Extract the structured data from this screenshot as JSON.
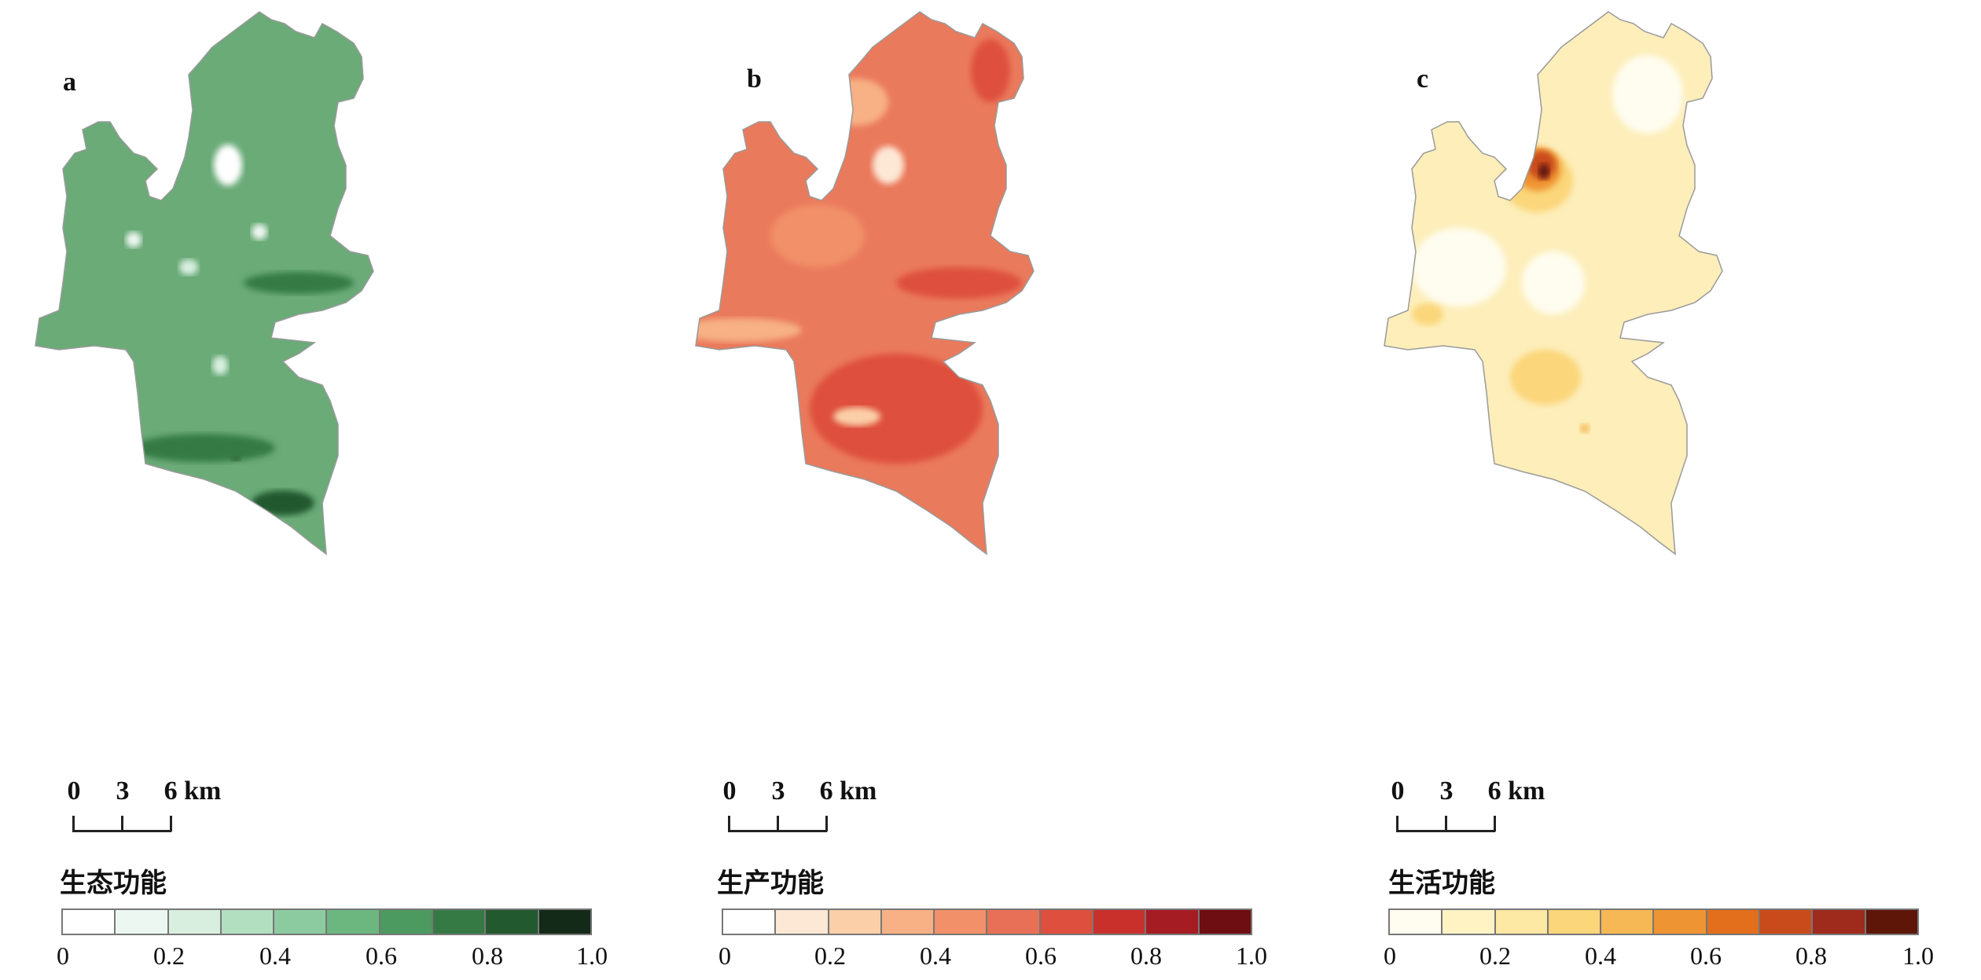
{
  "panels": [
    {
      "id": "a",
      "label": "a",
      "legend_title": "生态功能",
      "scale_ticks": [
        "0",
        "3",
        "6 km"
      ],
      "legend_ticks": [
        "0",
        "0.2",
        "0.4",
        "0.6",
        "0.8",
        "1.0"
      ],
      "colors": [
        "#ffffff",
        "#edf7f1",
        "#d8efdf",
        "#b2dfc0",
        "#8ccba0",
        "#6cb680",
        "#4c9a5f",
        "#357a44",
        "#22592e",
        "#142a19"
      ],
      "base_color": "#6aab78",
      "spots": [
        {
          "cx": 290,
          "cy": 210,
          "rx": 18,
          "ry": 26,
          "c": "#ffffff"
        },
        {
          "cx": 170,
          "cy": 305,
          "rx": 10,
          "ry": 10,
          "c": "#edf7f1"
        },
        {
          "cx": 240,
          "cy": 340,
          "rx": 12,
          "ry": 10,
          "c": "#d8efdf"
        },
        {
          "cx": 330,
          "cy": 295,
          "rx": 10,
          "ry": 10,
          "c": "#edf7f1"
        },
        {
          "cx": 280,
          "cy": 465,
          "rx": 10,
          "ry": 12,
          "c": "#d8efdf"
        },
        {
          "cx": 300,
          "cy": 580,
          "rx": 6,
          "ry": 6,
          "c": "#142a19"
        },
        {
          "cx": 380,
          "cy": 360,
          "rx": 70,
          "ry": 14,
          "c": "#357a44"
        },
        {
          "cx": 260,
          "cy": 570,
          "rx": 90,
          "ry": 18,
          "c": "#357a44"
        },
        {
          "cx": 360,
          "cy": 640,
          "rx": 40,
          "ry": 16,
          "c": "#22592e"
        }
      ]
    },
    {
      "id": "b",
      "label": "b",
      "legend_title": "生产功能",
      "scale_ticks": [
        "0",
        "3",
        "6 km"
      ],
      "legend_ticks": [
        "0",
        "0.2",
        "0.4",
        "0.6",
        "0.8",
        "1.0"
      ],
      "colors": [
        "#ffffff",
        "#fde8d6",
        "#fbcfa8",
        "#f7b184",
        "#f19069",
        "#e87056",
        "#de4f3e",
        "#c9302c",
        "#a51c22",
        "#6e0e12"
      ],
      "base_color": "#ea7a5c",
      "spots": [
        {
          "cx": 290,
          "cy": 210,
          "rx": 20,
          "ry": 24,
          "c": "#fde8d6"
        },
        {
          "cx": 250,
          "cy": 130,
          "rx": 40,
          "ry": 30,
          "c": "#f7b184"
        },
        {
          "cx": 200,
          "cy": 300,
          "rx": 60,
          "ry": 40,
          "c": "#f19069"
        },
        {
          "cx": 380,
          "cy": 360,
          "rx": 80,
          "ry": 20,
          "c": "#de4f3e"
        },
        {
          "cx": 300,
          "cy": 520,
          "rx": 110,
          "ry": 70,
          "c": "#de4f3e"
        },
        {
          "cx": 250,
          "cy": 530,
          "rx": 30,
          "ry": 12,
          "c": "#fbcfa8"
        },
        {
          "cx": 100,
          "cy": 420,
          "rx": 80,
          "ry": 15,
          "c": "#f7b184"
        },
        {
          "cx": 420,
          "cy": 90,
          "rx": 25,
          "ry": 40,
          "c": "#de4f3e"
        }
      ]
    },
    {
      "id": "c",
      "label": "c",
      "legend_title": "生活功能",
      "scale_ticks": [
        "0",
        "3",
        "6 km"
      ],
      "legend_ticks": [
        "0",
        "0.2",
        "0.4",
        "0.6",
        "0.8",
        "1.0"
      ],
      "colors": [
        "#fffdf0",
        "#fff3c4",
        "#fde8a4",
        "#fbd67a",
        "#f6b855",
        "#ef9433",
        "#e36e1c",
        "#c94b1c",
        "#9e2b1c",
        "#5e1608"
      ],
      "base_color": "#fdeeba",
      "spots": [
        {
          "cx": 140,
          "cy": 340,
          "rx": 60,
          "ry": 50,
          "c": "#fffdf0"
        },
        {
          "cx": 260,
          "cy": 360,
          "rx": 40,
          "ry": 40,
          "c": "#fffdf0"
        },
        {
          "cx": 380,
          "cy": 120,
          "rx": 45,
          "ry": 50,
          "c": "#fffdf0"
        },
        {
          "cx": 250,
          "cy": 480,
          "rx": 45,
          "ry": 35,
          "c": "#fbd67a"
        },
        {
          "cx": 100,
          "cy": 400,
          "rx": 20,
          "ry": 14,
          "c": "#fbd67a"
        },
        {
          "cx": 240,
          "cy": 230,
          "rx": 45,
          "ry": 40,
          "c": "#fbd67a"
        },
        {
          "cx": 240,
          "cy": 215,
          "rx": 30,
          "ry": 28,
          "c": "#ef9433"
        },
        {
          "cx": 245,
          "cy": 210,
          "rx": 18,
          "ry": 18,
          "c": "#c94b1c"
        },
        {
          "cx": 248,
          "cy": 218,
          "rx": 7,
          "ry": 10,
          "c": "#5e1608"
        },
        {
          "cx": 300,
          "cy": 545,
          "rx": 6,
          "ry": 6,
          "c": "#f6b855"
        }
      ]
    }
  ]
}
